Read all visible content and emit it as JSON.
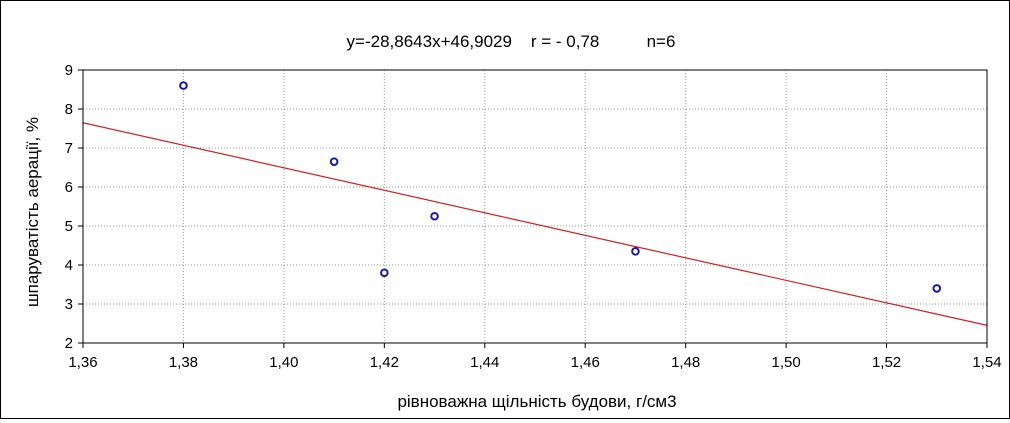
{
  "chart_data": {
    "type": "scatter",
    "title": "y=-28,8643x+46,9029    r = - 0,78          n=6",
    "xlabel": "рівноважна щільність будови, г/см3",
    "ylabel": "шпаруватість аерації, %",
    "xlim": [
      1.36,
      1.54
    ],
    "ylim": [
      2,
      9
    ],
    "x_ticks": [
      "1,36",
      "1,38",
      "1,40",
      "1,42",
      "1,44",
      "1,46",
      "1,48",
      "1,50",
      "1,52",
      "1,54"
    ],
    "y_ticks": [
      "2",
      "3",
      "4",
      "5",
      "6",
      "7",
      "8",
      "9"
    ],
    "grid": true,
    "points": [
      {
        "x": 1.38,
        "y": 8.6
      },
      {
        "x": 1.41,
        "y": 6.65
      },
      {
        "x": 1.42,
        "y": 3.8
      },
      {
        "x": 1.43,
        "y": 5.25
      },
      {
        "x": 1.47,
        "y": 4.35
      },
      {
        "x": 1.53,
        "y": 3.4
      }
    ],
    "trendline": {
      "slope": -28.8643,
      "intercept": 46.9029
    },
    "colors": {
      "points": "#1a1aa8",
      "trendline": "#cc2222",
      "grid": "#9a9a9a"
    }
  }
}
